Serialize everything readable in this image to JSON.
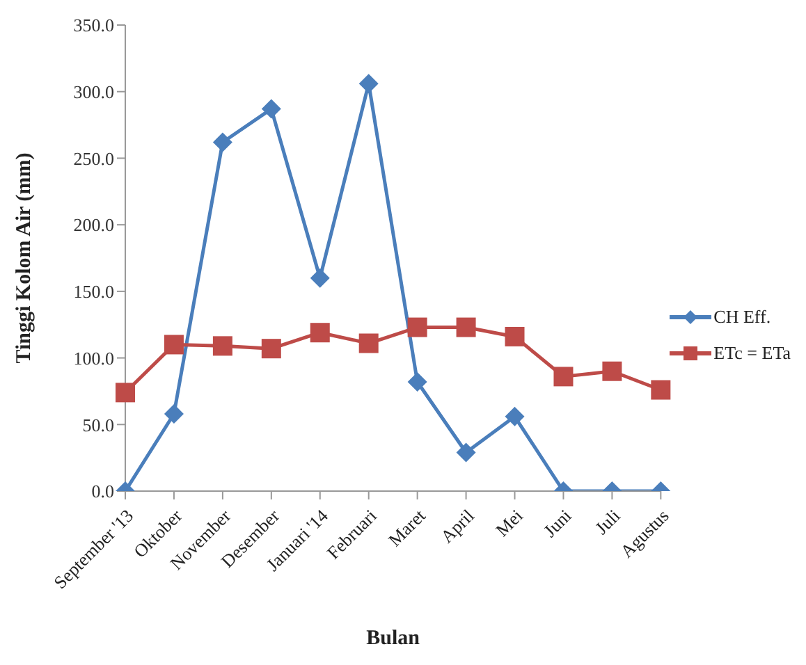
{
  "chart_data": {
    "type": "line",
    "xlabel": "Bulan",
    "ylabel": "Tinggi Kolom Air (mm)",
    "categories": [
      "September '13",
      "Oktober",
      "November",
      "Desember",
      "Januari '14",
      "Februari",
      "Maret",
      "April",
      "Mei",
      "Juni",
      "Juli",
      "Agustus"
    ],
    "series": [
      {
        "name": "CH Eff.",
        "color": "#4a7ebb",
        "marker": "diamond",
        "values": [
          0,
          58,
          262,
          287,
          160,
          306,
          82,
          29,
          56,
          0,
          0,
          0
        ]
      },
      {
        "name": "ETc = ETa",
        "color": "#be4b48",
        "marker": "square",
        "values": [
          74,
          110,
          109,
          107,
          119,
          111,
          123,
          123,
          116,
          86,
          90,
          76
        ]
      }
    ],
    "ylim": [
      0,
      350
    ],
    "yticks": [
      {
        "value": 0,
        "label": "0.0"
      },
      {
        "value": 50,
        "label": "50.0"
      },
      {
        "value": 100,
        "label": "100.0"
      },
      {
        "value": 150,
        "label": "150.0"
      },
      {
        "value": 200,
        "label": "200.0"
      },
      {
        "value": 250,
        "label": "250.0"
      },
      {
        "value": 300,
        "label": "300.0"
      },
      {
        "value": 350,
        "label": "350.0"
      }
    ],
    "grid": false,
    "legend": "right",
    "line_style": "solid"
  }
}
